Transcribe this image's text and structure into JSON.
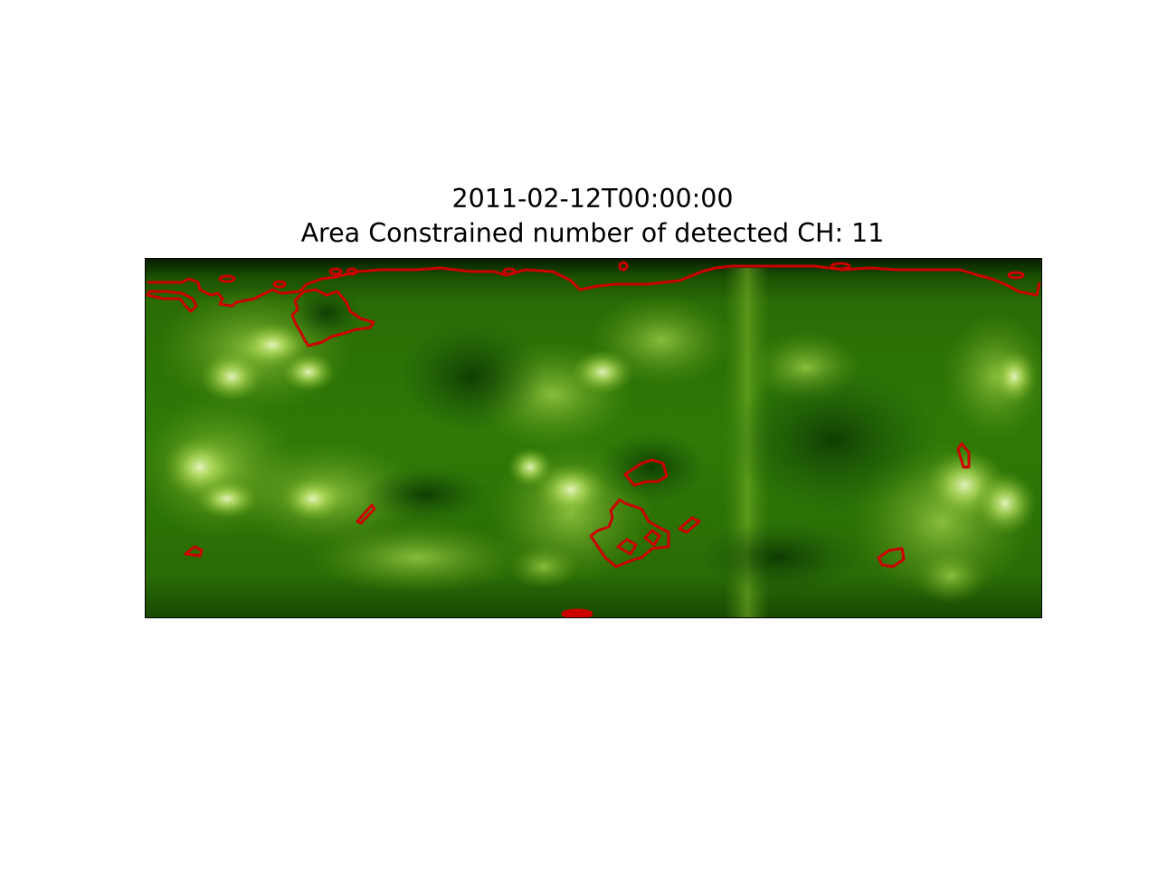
{
  "figure": {
    "title_line1": "2011-02-12T00:00:00",
    "title_line2": "Area Constrained number of detected CH: 11"
  },
  "map": {
    "description_colors": {
      "background_green": "#2f7a07",
      "dark_green": "#0c3a02",
      "bright_green": "#b9e36a",
      "highlight": "#f2fbd8",
      "contour_color": "#cc0000"
    }
  }
}
